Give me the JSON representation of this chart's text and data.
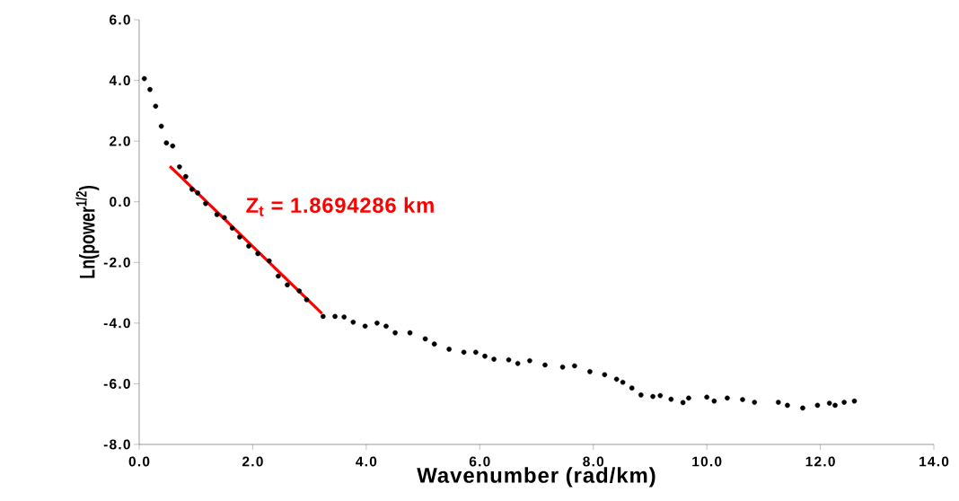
{
  "chart_data": {
    "type": "scatter",
    "xlabel": "Wavenumber (rad/km)",
    "ylabel": "Ln(power$^{1/2}$)",
    "xlim": [
      0,
      14
    ],
    "ylim": [
      -8,
      6
    ],
    "xticks": [
      {
        "value": 0,
        "label": "0.0"
      },
      {
        "value": 2,
        "label": "2.0"
      },
      {
        "value": 4,
        "label": "4.0"
      },
      {
        "value": 6,
        "label": "6.0"
      },
      {
        "value": 8,
        "label": "8.0"
      },
      {
        "value": 10,
        "label": "10.0"
      },
      {
        "value": 12,
        "label": "12.0"
      },
      {
        "value": 14,
        "label": "14.0"
      }
    ],
    "yticks": [
      {
        "value": -8,
        "label": "-8.0"
      },
      {
        "value": -6,
        "label": "-6.0"
      },
      {
        "value": -4,
        "label": "-4.0"
      },
      {
        "value": -2,
        "label": "-2.0"
      },
      {
        "value": 0,
        "label": "0.0"
      },
      {
        "value": 2,
        "label": "2.0"
      },
      {
        "value": 4,
        "label": "4.0"
      },
      {
        "value": 6,
        "label": "6.0"
      }
    ],
    "grid": false,
    "annotations": [
      "Z$_{t}$ = 1.8694286 km"
    ],
    "series": [
      {
        "color": "#000000",
        "marker": "circle",
        "x": [
          0.09,
          0.19,
          0.29,
          0.39,
          0.48,
          0.59,
          0.71,
          0.82,
          0.93,
          1.03,
          1.17,
          1.37,
          1.5,
          1.64,
          1.77,
          1.93,
          2.09,
          2.29,
          2.45,
          2.61,
          2.82,
          2.95,
          3.24,
          3.45,
          3.61,
          3.77,
          3.98,
          4.19,
          4.35,
          4.51,
          4.77,
          5.04,
          5.2,
          5.46,
          5.72,
          5.93,
          6.09,
          6.25,
          6.51,
          6.67,
          6.88,
          7.15,
          7.46,
          7.67,
          7.94,
          8.2,
          8.41,
          8.52,
          8.68,
          8.84,
          9.05,
          9.18,
          9.37,
          9.58,
          9.68,
          10.0,
          10.13,
          10.36,
          10.63,
          10.84,
          11.26,
          11.42,
          11.69,
          11.95,
          12.16,
          12.26,
          12.42,
          12.6
        ],
        "values": [
          4.06,
          3.7,
          3.15,
          2.49,
          1.94,
          1.84,
          1.15,
          0.83,
          0.41,
          0.29,
          -0.06,
          -0.42,
          -0.52,
          -0.87,
          -1.16,
          -1.46,
          -1.71,
          -1.95,
          -2.45,
          -2.74,
          -2.94,
          -3.23,
          -3.78,
          -3.78,
          -3.8,
          -3.97,
          -4.1,
          -4.0,
          -4.1,
          -4.32,
          -4.32,
          -4.52,
          -4.69,
          -4.86,
          -4.96,
          -4.96,
          -5.09,
          -5.19,
          -5.21,
          -5.33,
          -5.24,
          -5.38,
          -5.45,
          -5.41,
          -5.6,
          -5.7,
          -5.85,
          -5.95,
          -6.14,
          -6.37,
          -6.42,
          -6.39,
          -6.51,
          -6.62,
          -6.47,
          -6.44,
          -6.57,
          -6.47,
          -6.52,
          -6.61,
          -6.61,
          -6.71,
          -6.8,
          -6.71,
          -6.64,
          -6.71,
          -6.61,
          -6.57
        ]
      },
      {
        "type": "line",
        "color": "#ff0000",
        "marker": "none",
        "x": [
          0.54,
          3.22
        ],
        "values": [
          1.17,
          -3.68
        ]
      }
    ]
  }
}
